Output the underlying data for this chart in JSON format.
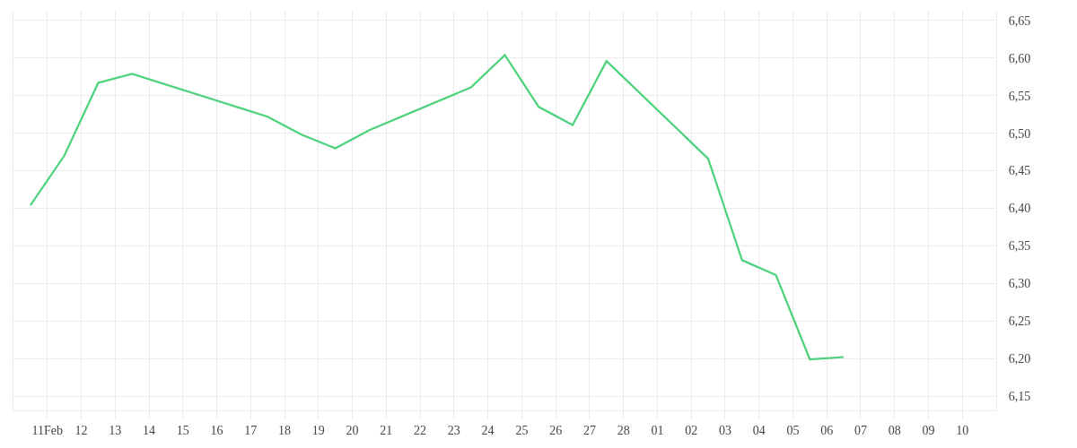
{
  "chart_data": {
    "type": "line",
    "x": [
      "--02-10T12:00",
      "--02-11T12:00",
      "--02-12T12:00",
      "--02-13T12:00",
      "--02-17T12:00",
      "--02-18T12:00",
      "--02-19T12:00",
      "--02-20T12:00",
      "--02-23T12:00",
      "--02-24T12:00",
      "--02-25T12:00",
      "--02-26T12:00",
      "--02-27T12:00",
      "--03-02T12:00",
      "--03-03T12:00",
      "--03-04T12:00",
      "--03-05T12:00",
      "--03-06T12:00"
    ],
    "series": [
      {
        "color": "#4cd27b",
        "values": [
          6.404,
          6.47,
          6.567,
          6.579,
          6.522,
          6.498,
          6.48,
          6.504,
          6.561,
          6.604,
          6.535,
          6.511,
          6.596,
          6.466,
          6.331,
          6.311,
          6.199,
          6.202
        ]
      }
    ],
    "xlim": [
      "--02-10",
      "--03-11"
    ],
    "xticks": [
      {
        "value": "--02-11",
        "label": "11Feb"
      },
      {
        "value": "--02-12",
        "label": "12"
      },
      {
        "value": "--02-13",
        "label": "13"
      },
      {
        "value": "--02-14",
        "label": "14"
      },
      {
        "value": "--02-15",
        "label": "15"
      },
      {
        "value": "--02-16",
        "label": "16"
      },
      {
        "value": "--02-17",
        "label": "17"
      },
      {
        "value": "--02-18",
        "label": "18"
      },
      {
        "value": "--02-19",
        "label": "19"
      },
      {
        "value": "--02-20",
        "label": "20"
      },
      {
        "value": "--02-21",
        "label": "21"
      },
      {
        "value": "--02-22",
        "label": "22"
      },
      {
        "value": "--02-23",
        "label": "23"
      },
      {
        "value": "--02-24",
        "label": "24"
      },
      {
        "value": "--02-25",
        "label": "25"
      },
      {
        "value": "--02-26",
        "label": "26"
      },
      {
        "value": "--02-27",
        "label": "27"
      },
      {
        "value": "--02-28",
        "label": "28"
      },
      {
        "value": "--03-01",
        "label": "01"
      },
      {
        "value": "--03-02",
        "label": "02"
      },
      {
        "value": "--03-03",
        "label": "03"
      },
      {
        "value": "--03-04",
        "label": "04"
      },
      {
        "value": "--03-05",
        "label": "05"
      },
      {
        "value": "--03-06",
        "label": "06"
      },
      {
        "value": "--03-07",
        "label": "07"
      },
      {
        "value": "--03-08",
        "label": "08"
      },
      {
        "value": "--03-09",
        "label": "09"
      },
      {
        "value": "--03-10",
        "label": "10"
      }
    ],
    "ylim": [
      6.131,
      6.663
    ],
    "yticks": [
      {
        "value": 6.15,
        "label": "6,15"
      },
      {
        "value": 6.2,
        "label": "6,20"
      },
      {
        "value": 6.25,
        "label": "6,25"
      },
      {
        "value": 6.3,
        "label": "6,30"
      },
      {
        "value": 6.35,
        "label": "6,35"
      },
      {
        "value": 6.4,
        "label": "6,40"
      },
      {
        "value": 6.45,
        "label": "6,45"
      },
      {
        "value": 6.5,
        "label": "6,50"
      },
      {
        "value": 6.55,
        "label": "6,55"
      },
      {
        "value": 6.6,
        "label": "6,60"
      },
      {
        "value": 6.65,
        "label": "6,65"
      }
    ],
    "grid": true
  }
}
